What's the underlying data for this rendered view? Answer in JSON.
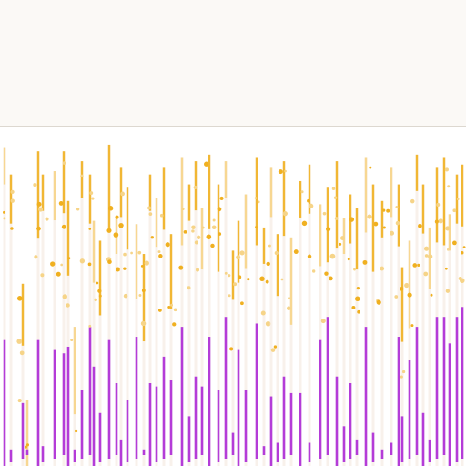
{
  "header": {
    "title": "",
    "subtitle_1": "",
    "subtitle_2": ""
  },
  "colors": {
    "gold": "#f0b020",
    "gold_light": "#f6d488",
    "purple": "#b43cd8",
    "stem": "#f3e6da"
  },
  "chart_data": {
    "type": "bar",
    "title": "",
    "xlabel": "",
    "ylabel": "",
    "grid": false,
    "legend": "none",
    "ylim": [
      0,
      100
    ],
    "x": [
      5,
      12,
      25,
      30,
      42,
      47,
      60,
      70,
      75,
      82,
      90,
      99,
      103,
      110,
      120,
      128,
      133,
      140,
      150,
      158,
      165,
      172,
      180,
      188,
      200,
      208,
      215,
      222,
      230,
      240,
      248,
      256,
      262,
      270,
      282,
      290,
      298,
      305,
      312,
      320,
      330,
      340,
      352,
      360,
      370,
      378,
      385,
      392,
      402,
      410,
      420,
      430,
      438,
      442,
      450,
      458,
      465,
      472,
      480,
      488,
      494,
      502,
      508
    ],
    "series": [
      {
        "values": [
          96,
          88,
          55,
          20,
          95,
          88,
          89,
          95,
          80,
          42,
          92,
          88,
          74,
          68,
          97,
          75,
          90,
          84,
          73,
          64,
          88,
          81,
          90,
          70,
          93,
          85,
          92,
          78,
          94,
          85,
          92,
          65,
          74,
          82,
          93,
          72,
          90,
          70,
          92,
          69,
          86,
          91,
          79,
          84,
          92,
          75,
          82,
          78,
          93,
          85,
          80,
          90,
          85,
          60,
          68,
          94,
          85,
          72,
          90,
          93,
          76,
          88,
          91
        ]
      },
      {
        "values": [
          38,
          5,
          19,
          5,
          38,
          6,
          35,
          34,
          36,
          5,
          23,
          42,
          30,
          16,
          38,
          25,
          8,
          20,
          39,
          5,
          25,
          24,
          33,
          26,
          42,
          15,
          27,
          24,
          39,
          23,
          45,
          10,
          35,
          23,
          43,
          6,
          21,
          7,
          27,
          22,
          22,
          7,
          38,
          45,
          27,
          12,
          25,
          8,
          42,
          10,
          5,
          7,
          39,
          15,
          32,
          42,
          16,
          8,
          45,
          45,
          37,
          45,
          48
        ]
      }
    ]
  }
}
